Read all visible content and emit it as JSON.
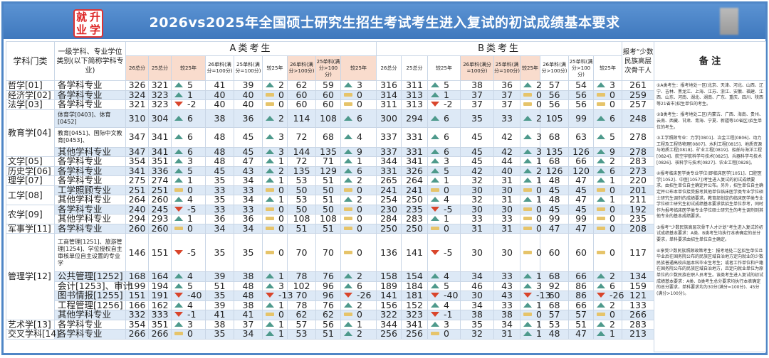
{
  "header": {
    "logo_text": "就升业学",
    "title": "2026vs2025年全国硕士研究生招生考试考生进入复试的初试成绩基本要求"
  },
  "columns": {
    "category": "学科门类",
    "major": "一级学科、专业学位类别(以下简称学科专业)",
    "group_a": "A类考生",
    "group_b": "B类考生",
    "minority": "报考“少数民族高层次骨干人",
    "notes": "备 注",
    "a_sub": [
      "26总分",
      "25总分",
      "较25年",
      "26单科(满分=100分)",
      "25单科(满分=100分)",
      "较25年",
      "26单科(满分>100分)",
      "25单科(满分>100分)",
      "较25年"
    ],
    "b_sub": [
      "26总分",
      "25总分",
      "较25年",
      "26单科(满分=100分)",
      "25单科(满分=100分)",
      "较25年",
      "26单科(满分>100分)",
      "25单科(满分>100分)",
      "较25年"
    ]
  },
  "colors": {
    "up": "#4e9a8c",
    "down": "#d9452b",
    "equal": "#e6c46a",
    "header_pink": "#f9dccd",
    "row_alt": "#dde9f6",
    "title_bar": "#4f86c6"
  },
  "groups": [
    {
      "category": "哲学[01]",
      "rows": [
        {
          "major": "各学科专业",
          "a": [
            326,
            321,
            5,
            41,
            39,
            2,
            62,
            59,
            3
          ],
          "b": [
            316,
            311,
            5,
            38,
            36,
            2,
            57,
            54,
            3
          ],
          "minority": 261
        }
      ]
    },
    {
      "category": "经济学[02]",
      "rows": [
        {
          "major": "各学科专业",
          "a": [
            324,
            323,
            1,
            40,
            40,
            0,
            60,
            60,
            0
          ],
          "b": [
            314,
            313,
            1,
            37,
            37,
            0,
            56,
            56,
            0
          ],
          "minority": 259
        }
      ]
    },
    {
      "category": "法学[03]",
      "rows": [
        {
          "major": "各学科专业",
          "a": [
            321,
            323,
            -2,
            40,
            40,
            0,
            60,
            60,
            0
          ],
          "b": [
            311,
            313,
            -2,
            37,
            37,
            0,
            56,
            56,
            0
          ],
          "minority": 257
        }
      ]
    },
    {
      "category": "教育学[04]",
      "rows": [
        {
          "major": "体育学[0403]、体育[0452]",
          "small": true,
          "a": [
            310,
            304,
            6,
            38,
            36,
            2,
            114,
            108,
            6
          ],
          "b": [
            300,
            294,
            6,
            35,
            33,
            2,
            105,
            99,
            6
          ],
          "minority": 248
        },
        {
          "major": "教育[0451]、国际中文教育[0453]、",
          "small": true,
          "a": [
            347,
            341,
            6,
            48,
            45,
            3,
            72,
            68,
            4
          ],
          "b": [
            337,
            331,
            6,
            45,
            42,
            3,
            68,
            63,
            5
          ],
          "minority": 278
        },
        {
          "major": "其他学科专业",
          "a": [
            347,
            341,
            6,
            48,
            45,
            3,
            144,
            135,
            9
          ],
          "b": [
            337,
            331,
            6,
            45,
            42,
            3,
            135,
            126,
            9
          ],
          "minority": 278
        }
      ]
    },
    {
      "category": "文学[05]",
      "rows": [
        {
          "major": "各学科专业",
          "a": [
            354,
            351,
            3,
            48,
            47,
            1,
            72,
            71,
            1
          ],
          "b": [
            344,
            341,
            3,
            45,
            44,
            1,
            68,
            66,
            2
          ],
          "minority": 283
        }
      ]
    },
    {
      "category": "历史学[06]",
      "rows": [
        {
          "major": "各学科专业",
          "a": [
            341,
            336,
            5,
            45,
            43,
            2,
            135,
            129,
            6
          ],
          "b": [
            331,
            326,
            5,
            42,
            40,
            2,
            126,
            120,
            6
          ],
          "minority": 273
        }
      ]
    },
    {
      "category": "理学[07]",
      "rows": [
        {
          "major": "各学科专业",
          "a": [
            275,
            274,
            1,
            35,
            34,
            1,
            53,
            51,
            2
          ],
          "b": [
            265,
            264,
            1,
            32,
            31,
            1,
            48,
            47,
            1
          ],
          "minority": 220
        }
      ]
    },
    {
      "category": "工学[08]",
      "rows": [
        {
          "major": "工学照顾专业",
          "a": [
            251,
            251,
            0,
            33,
            33,
            0,
            50,
            50,
            0
          ],
          "b": [
            241,
            241,
            0,
            30,
            30,
            0,
            45,
            45,
            0
          ],
          "minority": 201
        },
        {
          "major": "其他学科专业",
          "a": [
            264,
            260,
            4,
            35,
            34,
            1,
            53,
            51,
            2
          ],
          "b": [
            254,
            250,
            4,
            32,
            31,
            1,
            48,
            47,
            1
          ],
          "minority": 211
        }
      ]
    },
    {
      "category": "农学[09]",
      "rows": [
        {
          "major": "各学科专业",
          "a": [
            240,
            245,
            -5,
            33,
            33,
            0,
            50,
            50,
            0
          ],
          "b": [
            230,
            235,
            -5,
            30,
            30,
            0,
            45,
            45,
            0
          ],
          "minority": 192
        },
        {
          "major": "其他学科专业",
          "a": [
            294,
            293,
            1,
            36,
            36,
            0,
            108,
            108,
            0
          ],
          "b": [
            284,
            283,
            1,
            33,
            33,
            0,
            99,
            99,
            0
          ],
          "minority": 235
        }
      ]
    },
    {
      "category": "军事学[11]",
      "rows": [
        {
          "major": "各学科专业",
          "a": [
            260,
            260,
            0,
            34,
            34,
            0,
            51,
            51,
            0
          ],
          "b": [
            250,
            250,
            0,
            31,
            31,
            0,
            47,
            47,
            0
          ],
          "minority": 208
        }
      ]
    },
    {
      "category": "管理学[12]",
      "rows": [
        {
          "major": "工商管理[1251]、旅游管理[1254]、学位授权自主审核单位自主设置的专业学",
          "small": true,
          "a": [
            146,
            151,
            -5,
            35,
            35,
            0,
            70,
            70,
            0
          ],
          "b": [
            136,
            141,
            -5,
            30,
            30,
            0,
            60,
            60,
            0
          ],
          "minority": 117
        },
        {
          "major": "公共管理[1252]",
          "a": [
            168,
            164,
            4,
            39,
            38,
            1,
            78,
            76,
            2
          ],
          "b": [
            158,
            154,
            4,
            34,
            33,
            1,
            68,
            66,
            2
          ],
          "minority": 134
        },
        {
          "major": "会计[1253]、审计",
          "a": [
            199,
            194,
            5,
            51,
            48,
            3,
            102,
            96,
            6
          ],
          "b": [
            189,
            184,
            5,
            46,
            43,
            3,
            92,
            86,
            6
          ],
          "minority": 159
        },
        {
          "major": "图书情报[1255]",
          "a": [
            151,
            191,
            -40,
            35,
            48,
            -13,
            70,
            96,
            -26
          ],
          "b": [
            141,
            181,
            -40,
            30,
            43,
            -13,
            60,
            86,
            -26
          ],
          "minority": 121
        },
        {
          "major": "工程管理[1256]",
          "a": [
            166,
            162,
            4,
            39,
            38,
            1,
            78,
            76,
            2
          ],
          "b": [
            156,
            152,
            4,
            34,
            33,
            1,
            68,
            66,
            2
          ],
          "minority": 133
        },
        {
          "major": "其他学科专业",
          "a": [
            332,
            333,
            -1,
            41,
            41,
            0,
            62,
            62,
            0
          ],
          "b": [
            322,
            323,
            -1,
            38,
            38,
            0,
            57,
            57,
            0
          ],
          "minority": 266
        }
      ]
    },
    {
      "category": "艺术学[13]",
      "rows": [
        {
          "major": "各学科专业",
          "a": [
            354,
            351,
            3,
            38,
            37,
            1,
            57,
            56,
            1
          ],
          "b": [
            344,
            341,
            3,
            35,
            34,
            1,
            53,
            51,
            2
          ],
          "minority": 283
        }
      ]
    },
    {
      "category": "交叉学科[14]",
      "rows": [
        {
          "major": "各学科专业",
          "a": [
            266,
            266,
            0,
            35,
            34,
            1,
            53,
            51,
            2
          ],
          "b": [
            256,
            256,
            0,
            32,
            31,
            1,
            48,
            47,
            1
          ],
          "minority": 213
        }
      ]
    }
  ],
  "notes": [
    "①A类考生：报考地处一区(北京、天津、河北、山西、辽宁、吉林、黑龙江、上海、江苏、浙江、安徽、福建、江西、山东、河南、湖北、湖南、广东、重庆、四川、陕西等21省市)招生单位的考生。",
    "②B类考生：报考地处二区(内蒙古、广西、海南、贵州、云南、西藏、甘肃、青海、宁夏、新疆等10省区)招生单位的考生。",
    "③工学照顾专业：力学[0801]、冶金工程[0806]、动力工程及工程热物理[0807]、水利工程[0815]、地质资源与地质工程[0818]、矿业工程[0819]、船舶与海洋工程[0824]、航空宇航科学与技术[0825]、兵器科学与技术[0826]、核科学与技术[0827]、农业工程[0828]。",
    "④报考临床医学类专业学位(即临床医学[1051]、口腔医学[1052]、中医[1057])考生进入复试的初试成绩要求，由招生单位自主确定并公布。另外，招生单位自主确定并公布本单位接受报考其他单位临床医学类专业学位硕士研究生调剂的成绩要求。教育部划定的临床医学类专业学位硕士研究生初试成绩基本要求供招生单位参考，同时作为报考临床医学类专业学位硕士研究生的考生调剂到其他专业的基本成绩要求。",
    "⑤报考“少数民族高层次骨干人才计划”考生进入复试的初试成绩基本要求：A类、B类考生均执行本表确定的总分要求，单科要求由招生单位自主确定。",
    "⑥享受少数民族照顾政策考生：报考地处二区招生单位且毕业后在国务院公布的民族区域自治地方定向就业的少数民族普通高校应届本科毕业生考生；或者工作单位和户籍在国务院公布的民族区域自治地方，且定向就业单位为原单位的少数民族在职人员考生。该类考生进入复试的初试成绩基本要求：A类、B类考生总分要求均执行本表确定的总分要求，单科要求均为30分(满分=100分)、45分(满分>100分)。"
  ]
}
